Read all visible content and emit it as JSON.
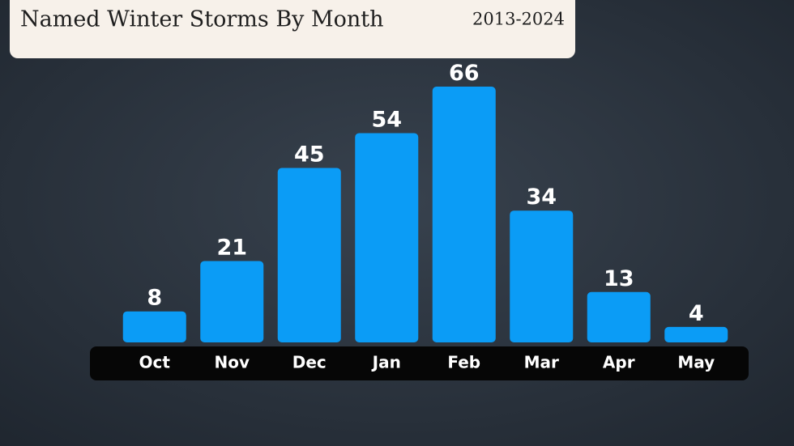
{
  "chart_data": {
    "type": "bar",
    "title": "Named Winter Storms By Month",
    "subtitle": "2013-2024",
    "categories": [
      "Oct",
      "Nov",
      "Dec",
      "Jan",
      "Feb",
      "Mar",
      "Apr",
      "May"
    ],
    "values": [
      8,
      21,
      45,
      54,
      66,
      34,
      13,
      4
    ],
    "color": "#0b9cf6"
  }
}
